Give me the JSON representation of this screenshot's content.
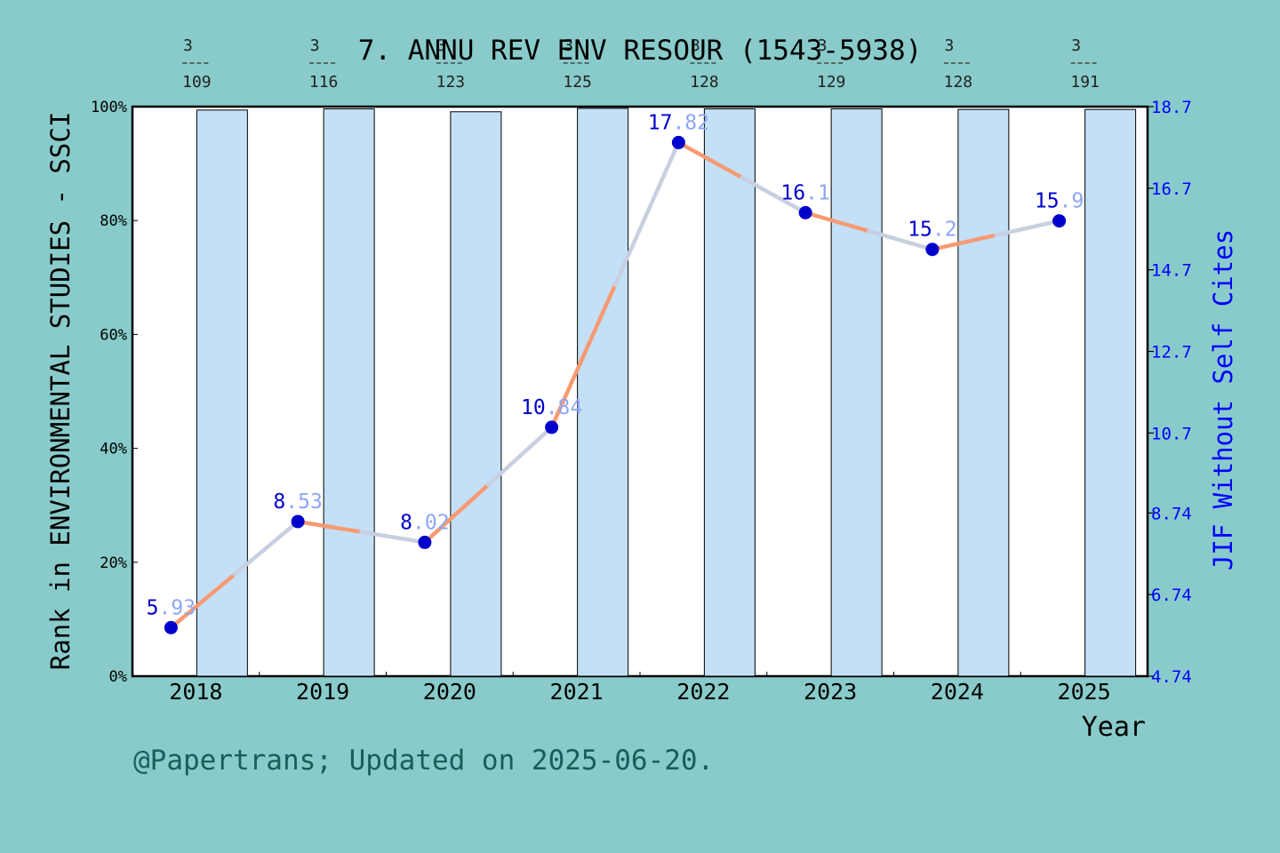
{
  "colors": {
    "background": "#88CBCA",
    "plot": "#FFFFFF",
    "bar_fill": "#C3E0F6",
    "line_orange": "#F79A72",
    "line_grey": "#C8CFE0",
    "marker": "#0000CC",
    "right_axis": "#0000FF",
    "footer": "#185E59"
  },
  "footer": "@Papertrans; Updated on 2025-06-20.",
  "chart_data": {
    "type": "bar+line",
    "title": "7. ANNU REV ENV RESOUR (1543-5938)",
    "xlabel": "Year",
    "ylabel_left": "Rank in ENVIRONMENTAL STUDIES - SSCI",
    "ylabel_right": "JIF Without Self Cites",
    "categories": [
      "2018",
      "2019",
      "2020",
      "2021",
      "2022",
      "2023",
      "2024",
      "2025"
    ],
    "rank": {
      "position": [
        3,
        3,
        3,
        3,
        3,
        3,
        3,
        3
      ],
      "total": [
        109,
        116,
        123,
        125,
        128,
        129,
        128,
        191
      ]
    },
    "bar_values_percent": [
      99.4,
      99.6,
      99.1,
      99.7,
      99.6,
      99.6,
      99.5,
      99.5
    ],
    "jif_without_self_cites": [
      5.93,
      8.53,
      8.02,
      10.84,
      17.82,
      16.1,
      15.2,
      15.9
    ],
    "jif_labels": [
      "5.93",
      "8.53",
      "8.02",
      "10.84",
      "17.82",
      "16.1",
      "15.2",
      "15.9"
    ],
    "left_axis": {
      "ticks": [
        0,
        20,
        40,
        60,
        80,
        100
      ],
      "tick_labels": [
        "0%",
        "20%",
        "40%",
        "60%",
        "80%",
        "100%"
      ],
      "ylim": [
        0,
        100
      ]
    },
    "right_axis": {
      "ticks": [
        4.74,
        6.74,
        8.74,
        10.7,
        12.7,
        14.7,
        16.7,
        18.7
      ],
      "tick_labels": [
        "4.74",
        "6.74",
        "8.74",
        "10.7",
        "12.7",
        "14.7",
        "16.7",
        "18.7"
      ],
      "ylim": [
        4.74,
        18.7
      ]
    },
    "grid": false
  }
}
